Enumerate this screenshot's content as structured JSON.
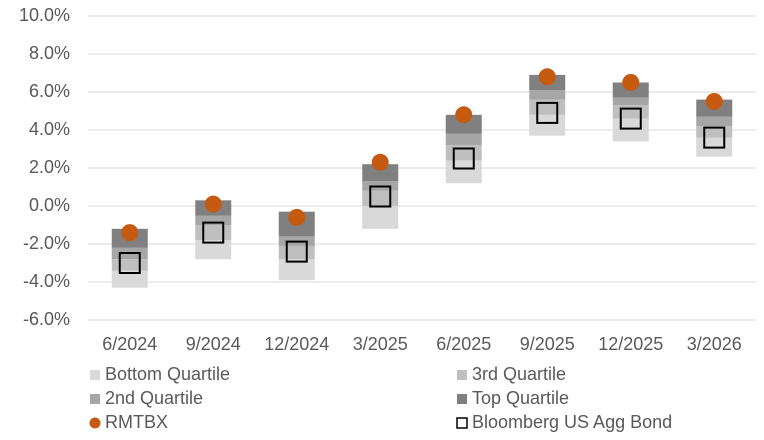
{
  "chart_data": {
    "type": "floating-bar",
    "categories": [
      "6/2024",
      "9/2024",
      "12/2024",
      "3/2025",
      "6/2025",
      "9/2025",
      "12/2025",
      "3/2026"
    ],
    "series": [
      {
        "name": "Bottom Quartile",
        "color": "#d9d9d9",
        "marker": "range",
        "values": [
          [
            -4.3,
            -3.4
          ],
          [
            -2.8,
            -1.8
          ],
          [
            -3.9,
            -2.8
          ],
          [
            -1.2,
            0.0
          ],
          [
            1.2,
            2.4
          ],
          [
            3.7,
            4.8
          ],
          [
            3.4,
            4.6
          ],
          [
            2.6,
            3.6
          ]
        ]
      },
      {
        "name": "3rd Quartile",
        "color": "#bfbfbf",
        "marker": "range",
        "values": [
          [
            -3.4,
            -2.8
          ],
          [
            -1.8,
            -1.0
          ],
          [
            -2.8,
            -2.1
          ],
          [
            0.0,
            0.8
          ],
          [
            2.4,
            3.2
          ],
          [
            4.8,
            5.6
          ],
          [
            4.6,
            5.3
          ],
          [
            3.6,
            4.2
          ]
        ]
      },
      {
        "name": "2nd Quartile",
        "color": "#a6a6a6",
        "marker": "range",
        "values": [
          [
            -2.8,
            -2.2
          ],
          [
            -1.0,
            -0.5
          ],
          [
            -2.1,
            -1.6
          ],
          [
            0.8,
            1.3
          ],
          [
            3.2,
            3.8
          ],
          [
            5.6,
            6.1
          ],
          [
            5.3,
            5.7
          ],
          [
            4.2,
            4.7
          ]
        ]
      },
      {
        "name": "Top Quartile",
        "color": "#808080",
        "marker": "range",
        "values": [
          [
            -2.2,
            -1.2
          ],
          [
            -0.5,
            0.3
          ],
          [
            -1.6,
            -0.3
          ],
          [
            1.3,
            2.2
          ],
          [
            3.8,
            4.8
          ],
          [
            6.1,
            6.9
          ],
          [
            5.7,
            6.5
          ],
          [
            4.7,
            5.6
          ]
        ]
      },
      {
        "name": "RMTBX",
        "color": "#c55a11",
        "marker": "circle",
        "values": [
          -1.4,
          0.1,
          -0.6,
          2.3,
          4.8,
          6.8,
          6.5,
          5.5
        ]
      },
      {
        "name": "Bloomberg US Agg Bond",
        "color": "#000000",
        "marker": "square",
        "values": [
          -3.0,
          -1.4,
          -2.4,
          0.5,
          2.5,
          4.9,
          4.6,
          3.6
        ]
      }
    ],
    "ylim": [
      -6,
      10
    ],
    "yticks": [
      {
        "value": -6,
        "label": "-6.0%"
      },
      {
        "value": -4,
        "label": "-4.0%"
      },
      {
        "value": -2,
        "label": "-2.0%"
      },
      {
        "value": 0,
        "label": "0.0%"
      },
      {
        "value": 2,
        "label": "2.0%"
      },
      {
        "value": 4,
        "label": "4.0%"
      },
      {
        "value": 6,
        "label": "6.0%"
      },
      {
        "value": 8,
        "label": "8.0%"
      },
      {
        "value": 10,
        "label": "10.0%"
      }
    ],
    "grid": true,
    "legend": "bottom"
  }
}
